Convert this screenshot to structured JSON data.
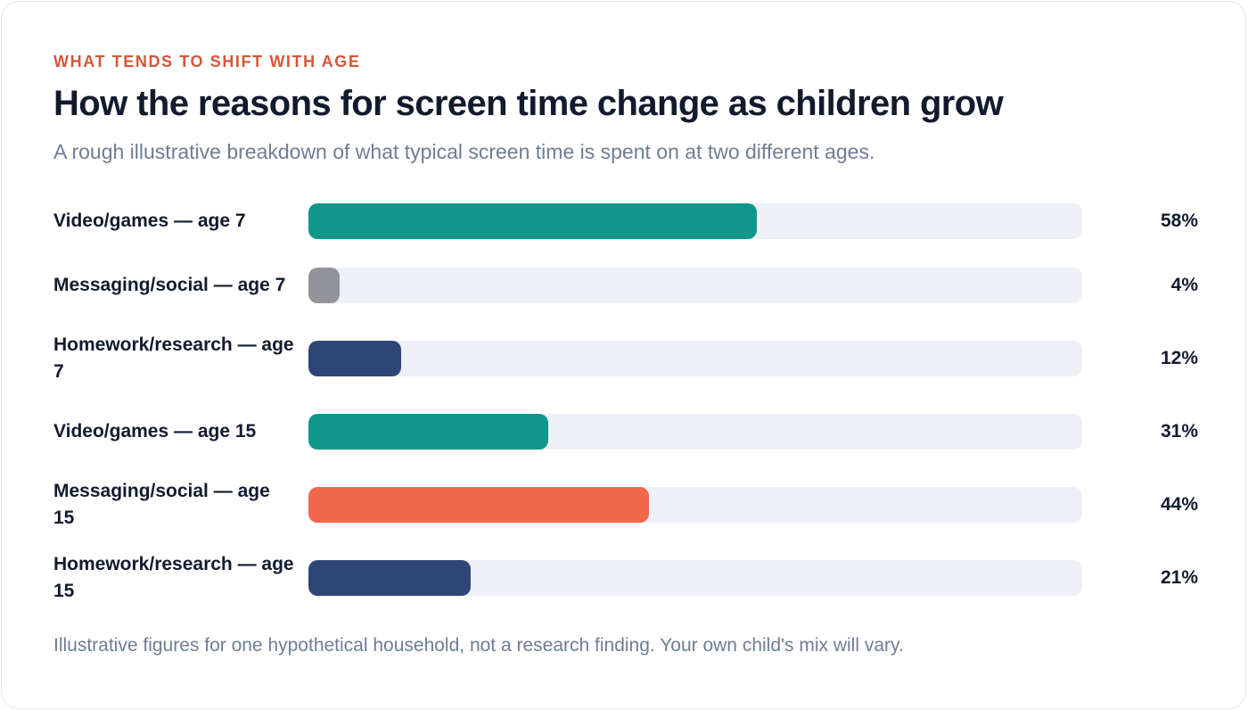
{
  "header": {
    "eyebrow": "WHAT TENDS TO SHIFT WITH AGE",
    "title": "How the reasons for screen time change as children grow",
    "subtitle": "A rough illustrative breakdown of what typical screen time is spent on at two different ages."
  },
  "chart_data": {
    "type": "bar",
    "orientation": "horizontal",
    "categories": [
      "Video/games — age 7",
      "Messaging/social — age 7",
      "Homework/research — age 7",
      "Video/games — age 15",
      "Messaging/social — age 15",
      "Homework/research — age 15"
    ],
    "values": [
      58,
      4,
      12,
      31,
      44,
      21
    ],
    "value_labels": [
      "58%",
      "4%",
      "12%",
      "31%",
      "44%",
      "21%"
    ],
    "bar_colors": [
      "#11968a",
      "#93949a",
      "#2e4677",
      "#11968a",
      "#f2664c",
      "#2e4677"
    ],
    "track_color": "#edf0f4",
    "xlim": [
      0,
      100
    ],
    "grid": false,
    "legend": "none"
  },
  "footnote": "Illustrative figures for one hypothetical household, not a research finding. Your own child's mix will vary.",
  "colors": {
    "eyebrow": "#d6553a",
    "title": "#121b2e",
    "muted_text": "#6f7d92",
    "card_border": "#e3e7ee"
  }
}
